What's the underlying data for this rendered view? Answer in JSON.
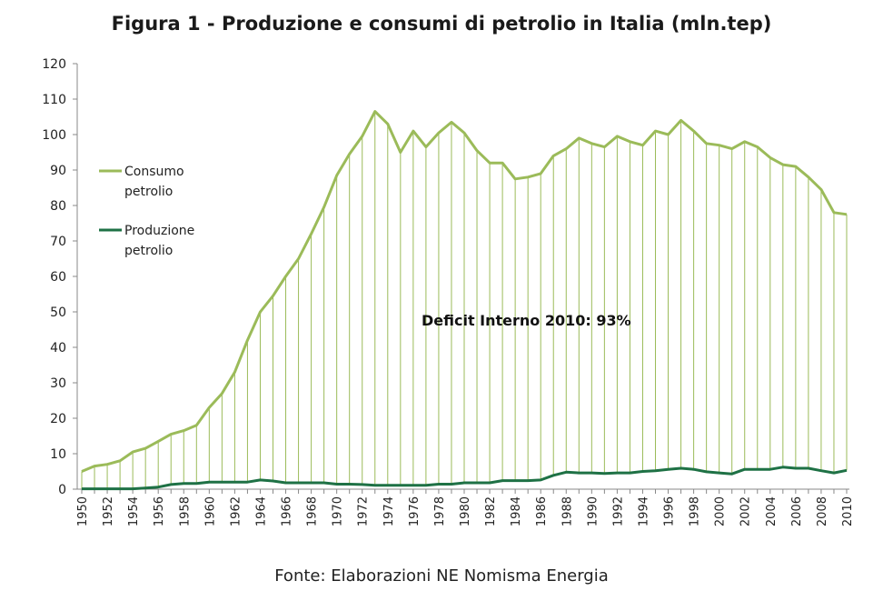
{
  "chart_data": {
    "type": "line",
    "title": "Figura 1 - Produzione e consumi di petrolio in Italia (mln.tep)",
    "source": "Fonte: Elaborazioni NE Nomisma Energia",
    "annotation": "Deficit Interno 2010: 93%",
    "ylim": [
      0,
      120
    ],
    "yticks": [
      0,
      10,
      20,
      30,
      40,
      50,
      60,
      70,
      80,
      90,
      100,
      110,
      120
    ],
    "x": [
      1950,
      1951,
      1952,
      1953,
      1954,
      1955,
      1956,
      1957,
      1958,
      1959,
      1960,
      1961,
      1962,
      1963,
      1964,
      1965,
      1966,
      1967,
      1968,
      1969,
      1970,
      1971,
      1972,
      1973,
      1974,
      1975,
      1976,
      1977,
      1978,
      1979,
      1980,
      1981,
      1982,
      1983,
      1984,
      1985,
      1986,
      1987,
      1988,
      1989,
      1990,
      1991,
      1992,
      1993,
      1994,
      1995,
      1996,
      1997,
      1998,
      1999,
      2000,
      2001,
      2002,
      2003,
      2004,
      2005,
      2006,
      2007,
      2008,
      2009,
      2010
    ],
    "xtick_labels": [
      "1950",
      "1952",
      "1954",
      "1956",
      "1958",
      "1960",
      "1962",
      "1964",
      "1966",
      "1968",
      "1970",
      "1972",
      "1974",
      "1976",
      "1978",
      "1980",
      "1982",
      "1984",
      "1986",
      "1988",
      "1990",
      "1992",
      "1994",
      "1996",
      "1998",
      "2000",
      "2002",
      "2004",
      "2006",
      "2008",
      "2010"
    ],
    "series": [
      {
        "name": "Consumo petrolio",
        "legend_lines": [
          "Consumo",
          "petrolio"
        ],
        "color": "#9bbb59",
        "values": [
          5,
          6.5,
          7,
          8,
          10.5,
          11.5,
          13.5,
          15.5,
          16.5,
          18,
          23,
          27,
          33,
          42,
          50,
          54.5,
          60,
          65,
          72,
          79.5,
          88.5,
          94.5,
          99.5,
          106.5,
          103,
          95,
          101,
          96.5,
          100.5,
          103.5,
          100.5,
          95.5,
          92,
          92,
          87.5,
          88,
          89,
          94,
          96,
          99,
          97.5,
          96.5,
          99.5,
          98,
          97,
          101,
          100,
          104,
          101,
          97.5,
          97,
          96,
          98,
          96.5,
          93.5,
          91.5,
          91,
          88,
          84.5,
          78,
          77.5
        ]
      },
      {
        "name": "Produzione petrolio",
        "legend_lines": [
          "Produzione",
          "petrolio"
        ],
        "color": "#1e7145",
        "values": [
          0.1,
          0.1,
          0.1,
          0.1,
          0.1,
          0.3,
          0.6,
          1.3,
          1.6,
          1.6,
          2,
          2,
          2,
          2,
          2.6,
          2.3,
          1.8,
          1.8,
          1.8,
          1.8,
          1.4,
          1.4,
          1.3,
          1.1,
          1.1,
          1.1,
          1.1,
          1.1,
          1.4,
          1.4,
          1.8,
          1.8,
          1.8,
          2.4,
          2.4,
          2.4,
          2.6,
          3.9,
          4.8,
          4.6,
          4.6,
          4.4,
          4.6,
          4.6,
          5,
          5.2,
          5.6,
          5.9,
          5.6,
          4.9,
          4.6,
          4.3,
          5.6,
          5.6,
          5.6,
          6.2,
          5.9,
          5.9,
          5.2,
          4.6,
          5.3
        ]
      }
    ]
  }
}
